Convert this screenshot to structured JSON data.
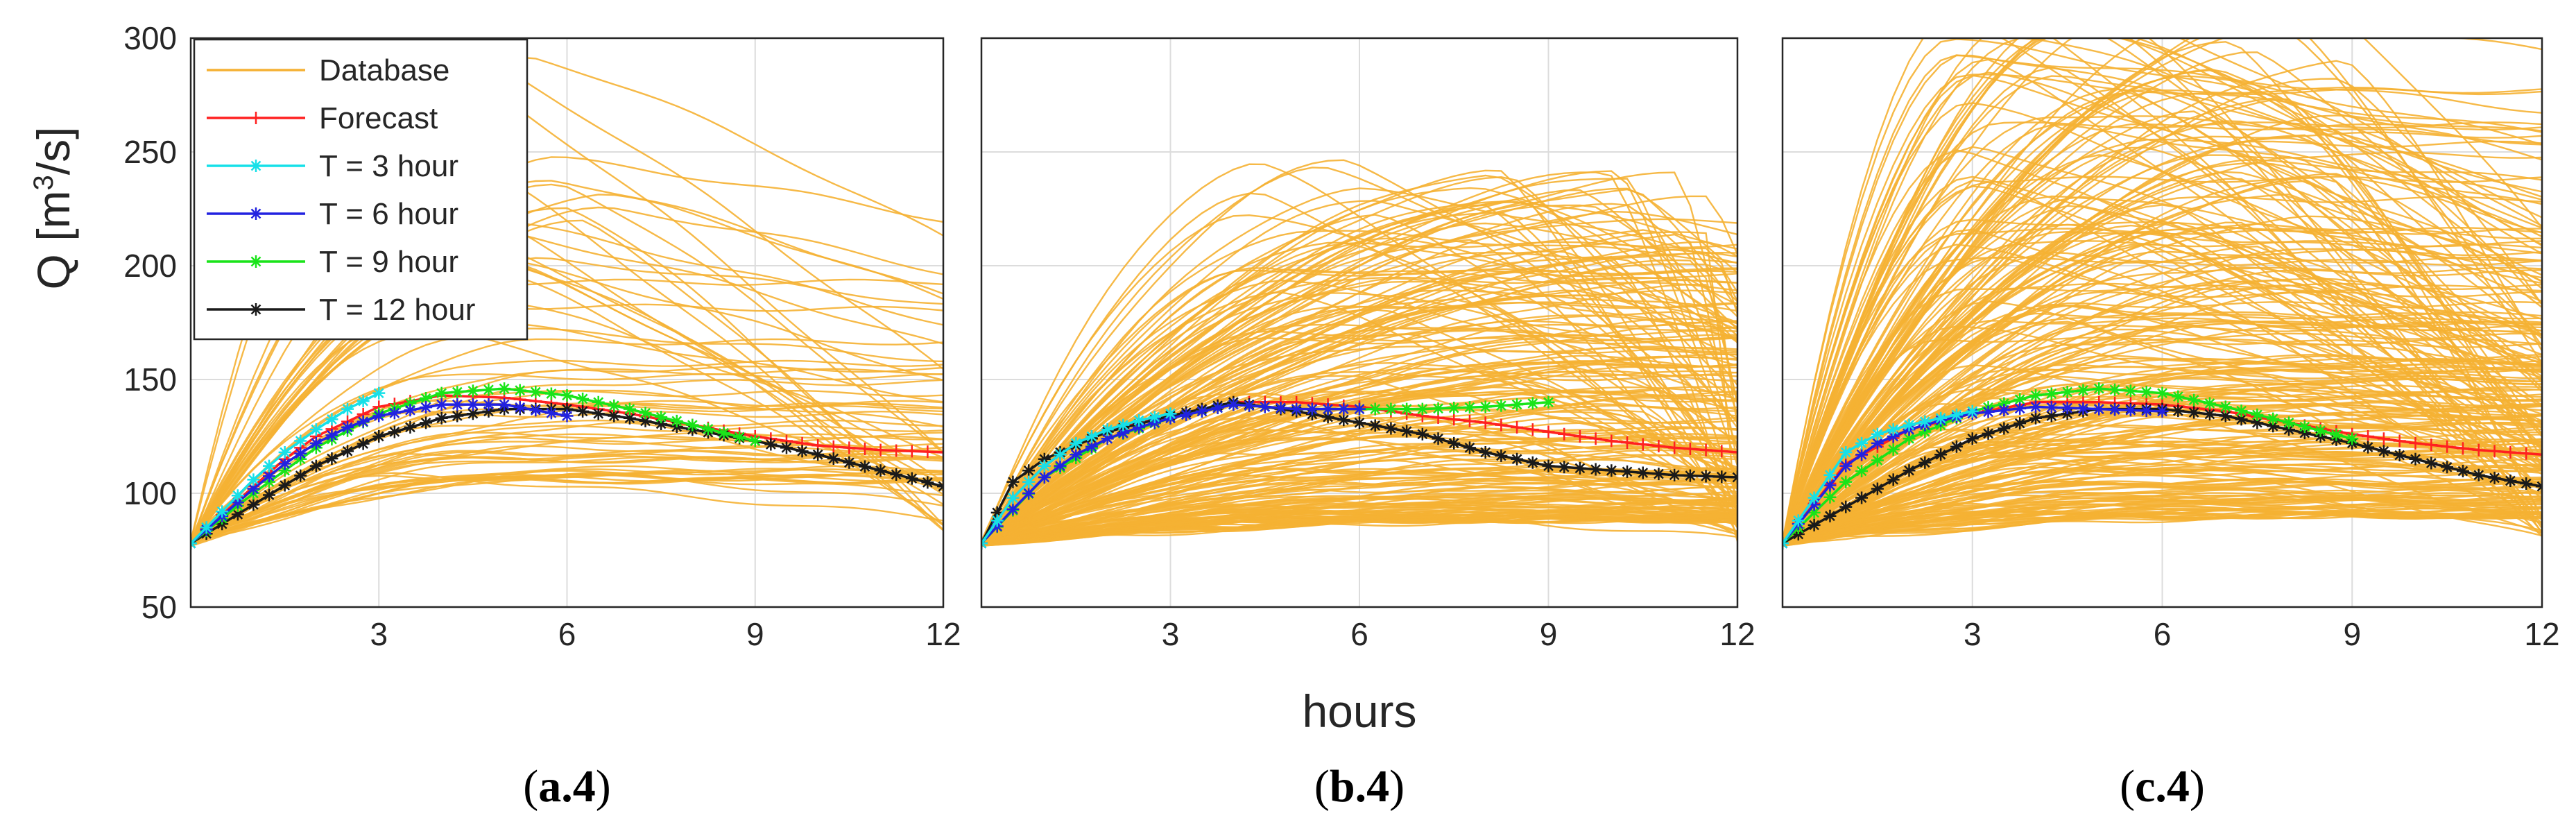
{
  "chart_data": {
    "type": "line",
    "ylabel_main": "Q [m",
    "ylabel_sup": "3",
    "ylabel_tail": "/s]",
    "xlabel": "hours",
    "xlim": [
      0,
      12
    ],
    "ylim": [
      50,
      300
    ],
    "x_ticks": [
      3,
      6,
      9,
      12
    ],
    "y_ticks": [
      50,
      100,
      150,
      200,
      250,
      300
    ],
    "legend": [
      {
        "name": "Database",
        "color": "#F5B133",
        "marker": "none"
      },
      {
        "name": "Forecast",
        "color": "#FF2020",
        "marker": "plus"
      },
      {
        "name": "T = 3 hour",
        "color": "#16E0E8",
        "marker": "star"
      },
      {
        "name": "T = 6 hour",
        "color": "#2222E0",
        "marker": "star"
      },
      {
        "name": "T = 9 hour",
        "color": "#19E419",
        "marker": "star"
      },
      {
        "name": "T = 12 hour",
        "color": "#1A1A1A",
        "marker": "star"
      }
    ],
    "panels": [
      {
        "label_prefix": "(",
        "label": "a.4",
        "label_suffix": ")",
        "database": {
          "count": 70,
          "start": 78,
          "peak_min": 105,
          "peak_max": 305,
          "peak_t_min": 3.2,
          "peak_t_max": 6.8,
          "end_min": 80,
          "end_max": 225,
          "seed": 11
        },
        "series": {
          "forecast": {
            "x": [
              0,
              1,
              1.5,
              2,
              3,
              4,
              5,
              6,
              7,
              8,
              9,
              10,
              11,
              12
            ],
            "y": [
              78,
              103,
              115,
              125,
              138,
              143,
              142,
              139,
              135,
              130,
              125,
              121,
              119,
              118
            ]
          },
          "t3": {
            "x": [
              0,
              0.5,
              1,
              1.5,
              2,
              2.5,
              3
            ],
            "y": [
              78,
              92,
              106,
              118,
              128,
              137,
              144
            ]
          },
          "t6": {
            "x": [
              0,
              0.5,
              1,
              1.5,
              2,
              2.5,
              3,
              4,
              5,
              6
            ],
            "y": [
              78,
              90,
              102,
              113,
              122,
              129,
              134,
              139,
              139,
              134
            ]
          },
          "t9": {
            "x": [
              0,
              1,
              2,
              3,
              4,
              5,
              6,
              7,
              8,
              9
            ],
            "y": [
              78,
              100,
              120,
              135,
              144,
              146,
              143,
              137,
              130,
              123
            ]
          },
          "t12": {
            "x": [
              0,
              1,
              2,
              3,
              4,
              5,
              6,
              7,
              8,
              9,
              10,
              11,
              12
            ],
            "y": [
              78,
              95,
              112,
              125,
              133,
              137,
              137,
              133,
              128,
              123,
              117,
              110,
              103
            ]
          }
        }
      },
      {
        "label_prefix": "(",
        "label": "b.4",
        "label_suffix": ")",
        "database": {
          "count": 220,
          "start": 78,
          "peak_min": 88,
          "peak_max": 250,
          "peak_t_min": 4,
          "peak_t_max": 12,
          "end_min": 80,
          "end_max": 245,
          "seed": 29
        },
        "series": {
          "forecast": {
            "x": [
              0,
              0.5,
              1,
              1.5,
              2,
              3,
              4,
              5,
              6,
              7,
              8,
              9,
              10,
              11,
              12
            ],
            "y": [
              78,
              98,
              112,
              122,
              128,
              134,
              140,
              140,
              138,
              134,
              131,
              127,
              123,
              120,
              118
            ]
          },
          "t3": {
            "x": [
              0,
              0.5,
              1,
              1.5,
              2,
              2.5,
              3
            ],
            "y": [
              78,
              98,
              112,
              122,
              128,
              132,
              135
            ]
          },
          "t6": {
            "x": [
              0,
              0.5,
              1,
              1.5,
              2,
              2.5,
              3,
              4,
              5,
              6
            ],
            "y": [
              78,
              93,
              107,
              117,
              124,
              129,
              133,
              139,
              137,
              137
            ]
          },
          "t9": {
            "x": [
              0,
              1,
              2,
              3,
              4,
              5,
              6,
              7,
              8,
              9
            ],
            "y": [
              78,
              107,
              124,
              133,
              139,
              137,
              137,
              137,
              138,
              140
            ]
          },
          "t12": {
            "x": [
              0,
              0.5,
              1,
              2,
              3,
              4,
              5,
              6,
              7,
              8,
              9,
              10,
              11,
              12
            ],
            "y": [
              78,
              105,
              115,
              127,
              134,
              140,
              136,
              131,
              126,
              118,
              112,
              110,
              108,
              107
            ]
          }
        }
      },
      {
        "label_prefix": "(",
        "label": "c.4",
        "label_suffix": ")",
        "database": {
          "count": 260,
          "start": 78,
          "peak_min": 90,
          "peak_max": 320,
          "peak_t_min": 2.5,
          "peak_t_max": 9,
          "end_min": 80,
          "end_max": 300,
          "seed": 47
        },
        "series": {
          "forecast": {
            "x": [
              0,
              1,
              2,
              3,
              4,
              5,
              6,
              7,
              8,
              9,
              10,
              11,
              12
            ],
            "y": [
              78,
              113,
              128,
              135,
              140,
              140,
              139,
              136,
              131,
              126,
              122,
              119,
              117
            ]
          },
          "t3": {
            "x": [
              0,
              0.5,
              1,
              1.5,
              2,
              2.5,
              3
            ],
            "y": [
              78,
              98,
              118,
              126,
              130,
              133,
              136
            ]
          },
          "t6": {
            "x": [
              0,
              0.5,
              1,
              1.5,
              2,
              2.5,
              3,
              4,
              5,
              6
            ],
            "y": [
              78,
              95,
              112,
              122,
              128,
              132,
              135,
              138,
              137,
              136
            ]
          },
          "t9": {
            "x": [
              0,
              1,
              2,
              3,
              4,
              5,
              6,
              7,
              8,
              9
            ],
            "y": [
              78,
              105,
              124,
              136,
              143,
              146,
              144,
              138,
              131,
              124
            ]
          },
          "t12": {
            "x": [
              0,
              1,
              2,
              3,
              4,
              5,
              6,
              7,
              8,
              9,
              10,
              11,
              12
            ],
            "y": [
              78,
              94,
              110,
              124,
              133,
              137,
              137,
              134,
              128,
              122,
              115,
              108,
              103
            ]
          }
        }
      }
    ]
  }
}
